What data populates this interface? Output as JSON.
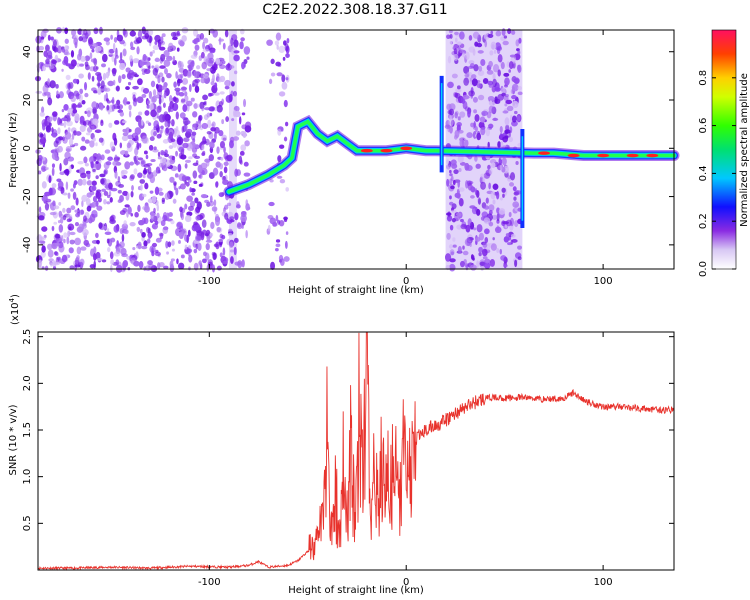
{
  "title": "C2E2.2022.308.18.37.G11",
  "chart_data": [
    {
      "type": "heatmap",
      "name": "spectrogram",
      "xlabel": "Height of straight line (km)",
      "ylabel": "Frequency (Hz)",
      "xlim": [
        -187,
        136
      ],
      "ylim": [
        -50,
        49
      ],
      "xticks": [
        -100,
        0,
        100
      ],
      "yticks": [
        -40,
        -20,
        0,
        20,
        40
      ],
      "colorbar": {
        "label": "Normalized spectral amplitude",
        "range": [
          0,
          1
        ],
        "ticks": [
          0.0,
          0.2,
          0.4,
          0.6,
          0.8
        ]
      },
      "grid": false
    },
    {
      "type": "line",
      "name": "snr",
      "xlabel": "Height of straight line (km)",
      "ylabel": "SNR (10 * v/v)",
      "ymultiplier": "(x10",
      "ymultiplier_exp": "4",
      "ymultiplier_close": ")",
      "xlim": [
        -187,
        136
      ],
      "ylim": [
        0,
        2.55
      ],
      "xticks": [
        -100,
        0,
        100
      ],
      "yticks": [
        0.5,
        1.0,
        1.5,
        2.0,
        2.5
      ],
      "ytick_labels": [
        "0.5",
        "1.0",
        "1.5",
        "2.0",
        "2.5"
      ],
      "color": "#e8322c",
      "series": [
        {
          "x": [
            -187,
            -170,
            -150,
            -130,
            -110,
            -90,
            -80,
            -75,
            -70,
            -60,
            -55,
            -50,
            -45,
            -42,
            -40,
            -38,
            -36,
            -34,
            -32,
            -30,
            -28,
            -26,
            -24,
            -22,
            -20,
            -18,
            -16,
            -14,
            -12,
            -10,
            -8,
            -5,
            -2,
            0,
            5,
            10,
            15,
            20,
            25,
            30,
            35,
            40,
            45,
            50,
            60,
            70,
            80,
            85,
            90,
            95,
            100,
            110,
            120,
            130,
            136
          ],
          "y": [
            0.02,
            0.02,
            0.03,
            0.02,
            0.04,
            0.03,
            0.05,
            0.09,
            0.03,
            0.05,
            0.1,
            0.2,
            0.4,
            0.8,
            1.6,
            0.5,
            1.1,
            0.3,
            1.3,
            0.6,
            1.6,
            0.5,
            1.8,
            0.9,
            2.55,
            0.6,
            1.4,
            0.8,
            1.3,
            1.0,
            1.2,
            1.1,
            1.3,
            1.3,
            1.4,
            1.5,
            1.55,
            1.6,
            1.68,
            1.74,
            1.8,
            1.84,
            1.85,
            1.84,
            1.85,
            1.83,
            1.84,
            1.9,
            1.82,
            1.78,
            1.75,
            1.75,
            1.73,
            1.71,
            1.72
          ]
        }
      ]
    }
  ]
}
